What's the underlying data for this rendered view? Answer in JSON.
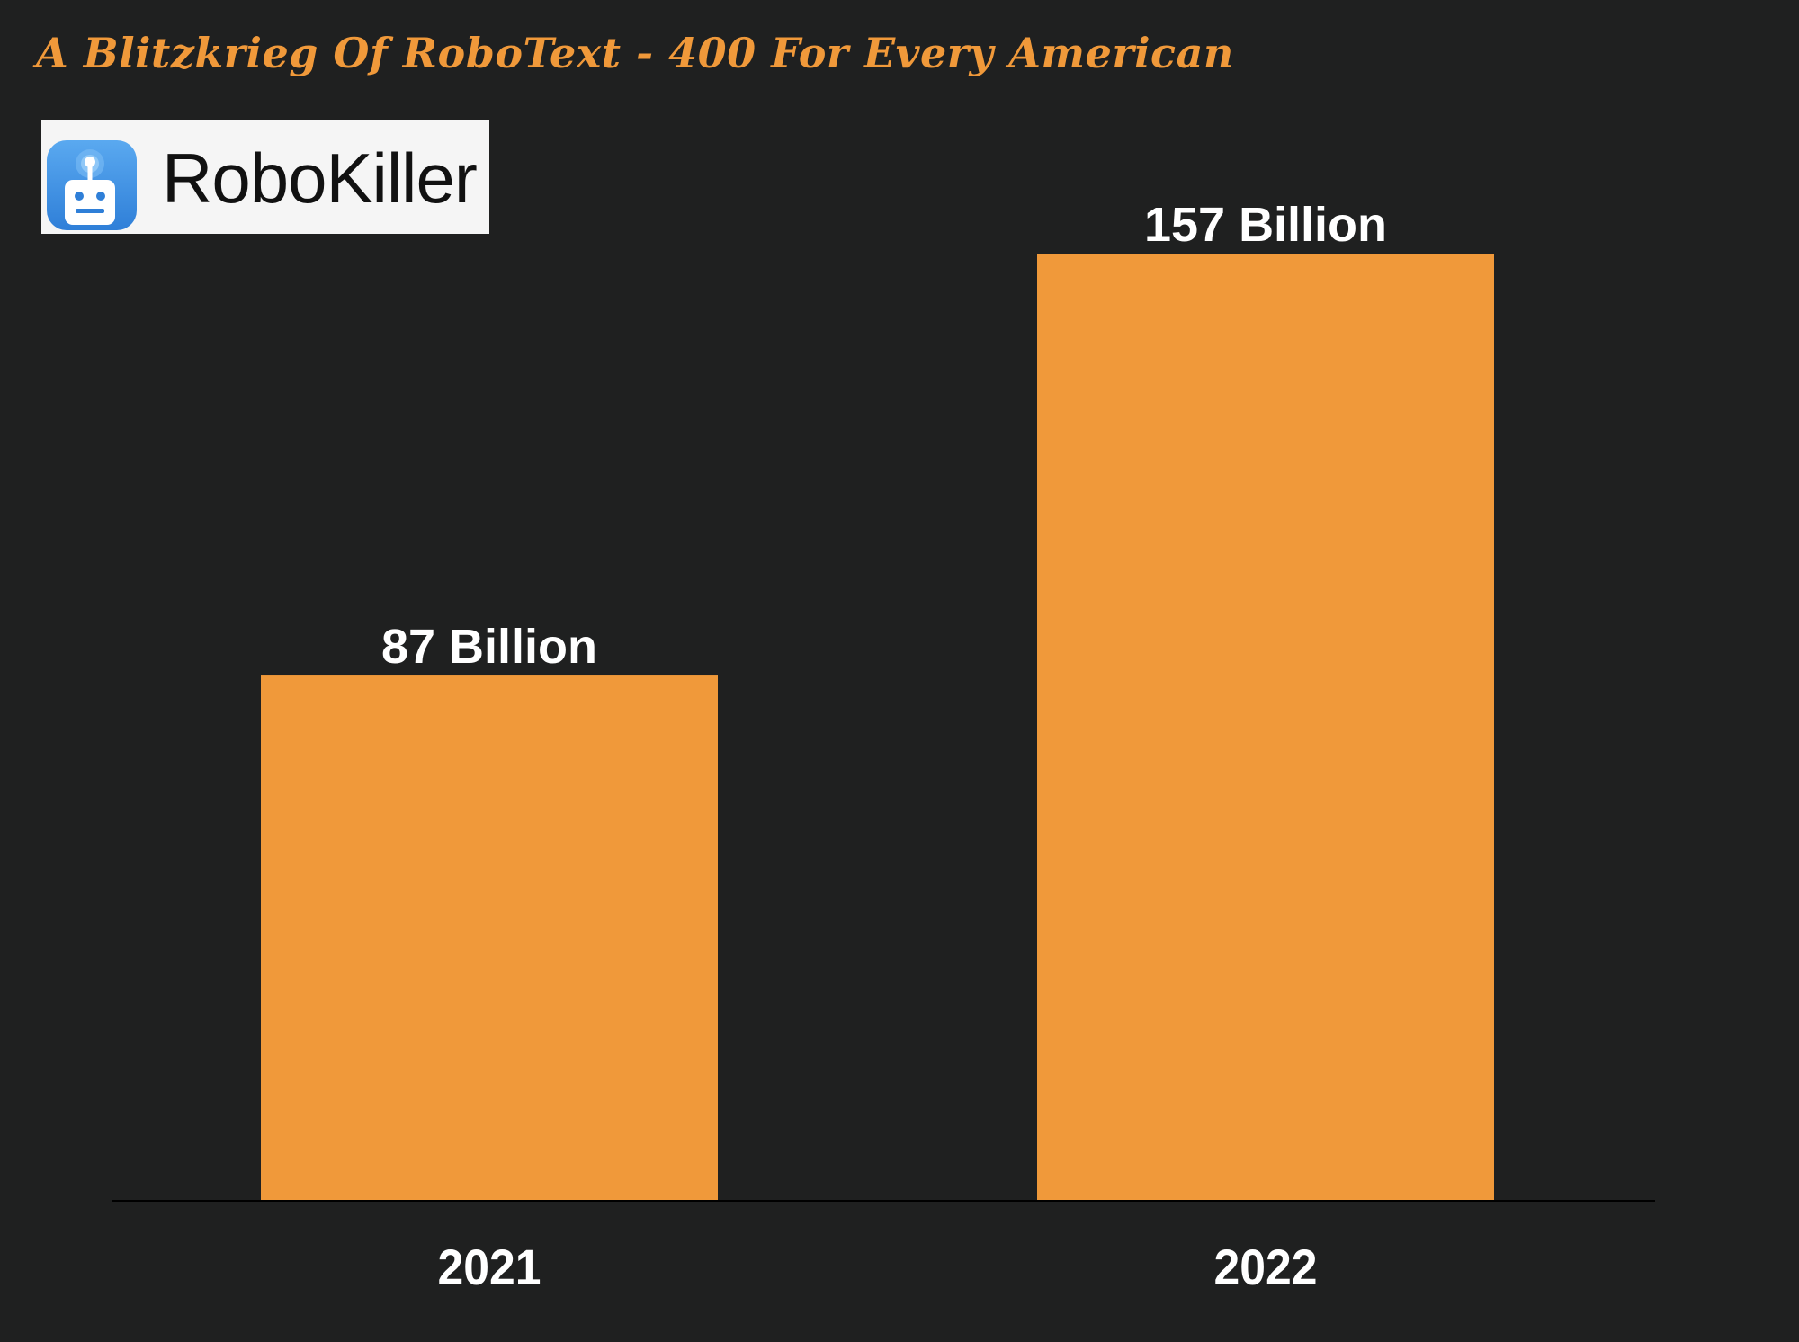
{
  "chart_data": {
    "type": "bar",
    "title": "A Blitzkrieg Of RoboText  - 400 For Every American",
    "categories": [
      "2021",
      "2022"
    ],
    "values": [
      87,
      157
    ],
    "data_labels": [
      "87  Billion",
      "157  Billion"
    ],
    "xlabel": "",
    "ylabel": "",
    "ylim": [
      0,
      157
    ],
    "grid": false,
    "legend": "none",
    "bar_color": "#f0993a",
    "background_color": "#1f2020",
    "label_color": "#ffffff"
  },
  "logo": {
    "text": "RoboKiller",
    "icon": "robot-icon",
    "icon_color": "#3a8ee6"
  }
}
